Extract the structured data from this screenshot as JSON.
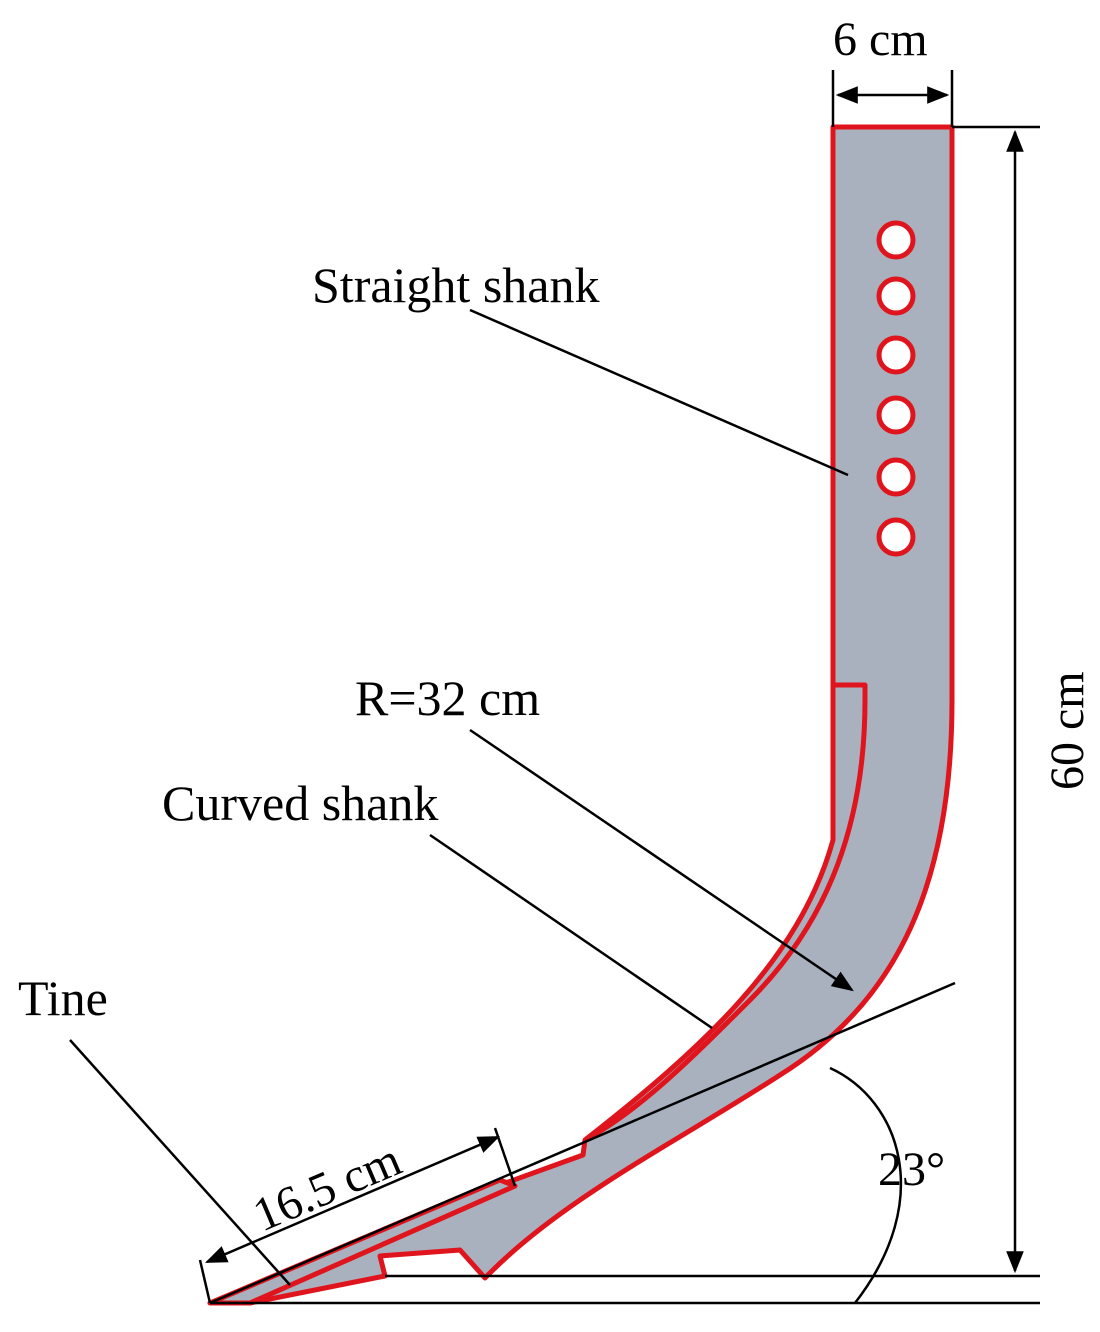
{
  "labels": {
    "straight_shank": "Straight shank",
    "curved_shank": "Curved shank",
    "tine": "Tine",
    "radius": "R=32 cm"
  },
  "dimensions": {
    "width": "6 cm",
    "height": "60 cm",
    "tine_length": "16.5 cm",
    "angle": "23°"
  },
  "colors": {
    "fill": "#a9b1bf",
    "outline": "#e0141c",
    "line": "#000000"
  }
}
